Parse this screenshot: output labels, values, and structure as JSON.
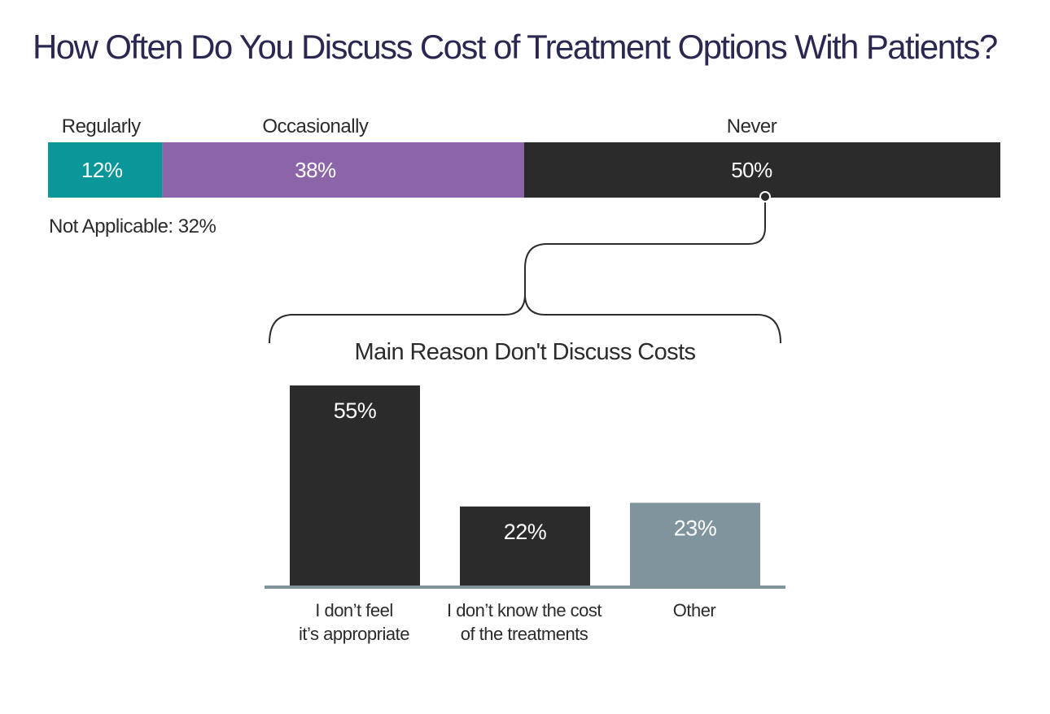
{
  "title": "How Often Do You Discuss Cost of Treatment Options With Patients?",
  "chart_data": [
    {
      "type": "bar",
      "orientation": "horizontal-stacked",
      "categories": [
        "Regularly",
        "Occasionally",
        "Never"
      ],
      "values": [
        12,
        38,
        50
      ],
      "value_labels": [
        "12%",
        "38%",
        "50%"
      ],
      "colors": [
        "#0b979a",
        "#8c65a8",
        "#2b2b2b"
      ],
      "xlim": [
        0,
        100
      ],
      "note": "Not Applicable: 32%"
    },
    {
      "type": "bar",
      "title": "Main Reason Don't Discuss Costs",
      "categories": [
        [
          "I don’t feel",
          "it’s appropriate"
        ],
        [
          "I don’t know the cost",
          "of the treatments"
        ],
        [
          "Other"
        ]
      ],
      "values": [
        55,
        22,
        23
      ],
      "value_labels": [
        "55%",
        "22%",
        "23%"
      ],
      "colors": [
        "#2b2b2b",
        "#2b2b2b",
        "#7f949d"
      ],
      "ylim": [
        0,
        55
      ],
      "axis_color": "#7f949d"
    }
  ]
}
